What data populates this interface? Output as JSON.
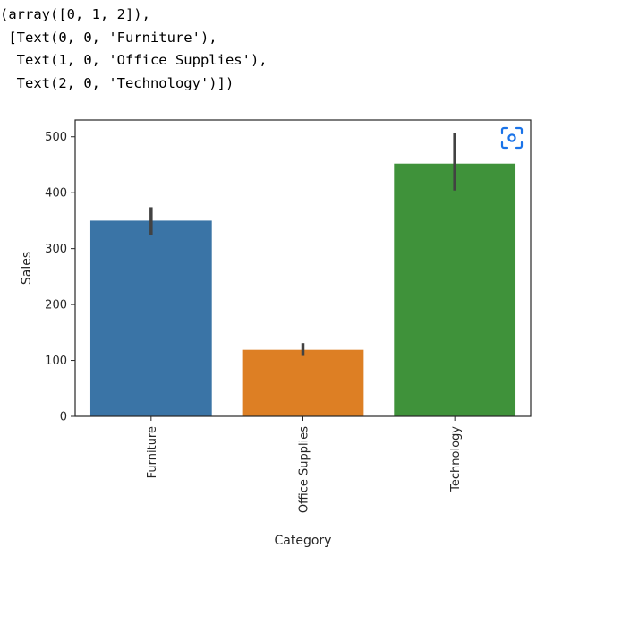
{
  "output_lines": [
    "(array([0, 1, 2]),",
    " [Text(0, 0, 'Furniture'),",
    "  Text(1, 0, 'Office Supplies'),",
    "  Text(2, 0, 'Technology')])"
  ],
  "chart_data": {
    "type": "bar",
    "categories": [
      "Furniture",
      "Office Supplies",
      "Technology"
    ],
    "values": [
      350,
      119,
      452
    ],
    "error_bars": [
      {
        "low": 324,
        "high": 374
      },
      {
        "low": 108,
        "high": 131
      },
      {
        "low": 404,
        "high": 506
      }
    ],
    "colors": [
      "#3a74a6",
      "#dd7f24",
      "#3f923a"
    ],
    "errorbar_color": "#424242",
    "xlabel": "Category",
    "ylabel": "Sales",
    "ylim": [
      0,
      530
    ],
    "yticks": [
      0,
      100,
      200,
      300,
      400,
      500
    ],
    "grid": false,
    "tick_rotation": 90
  },
  "ui": {
    "lens_icon": "visual-search-icon",
    "lens_color": "#1a73e8"
  }
}
